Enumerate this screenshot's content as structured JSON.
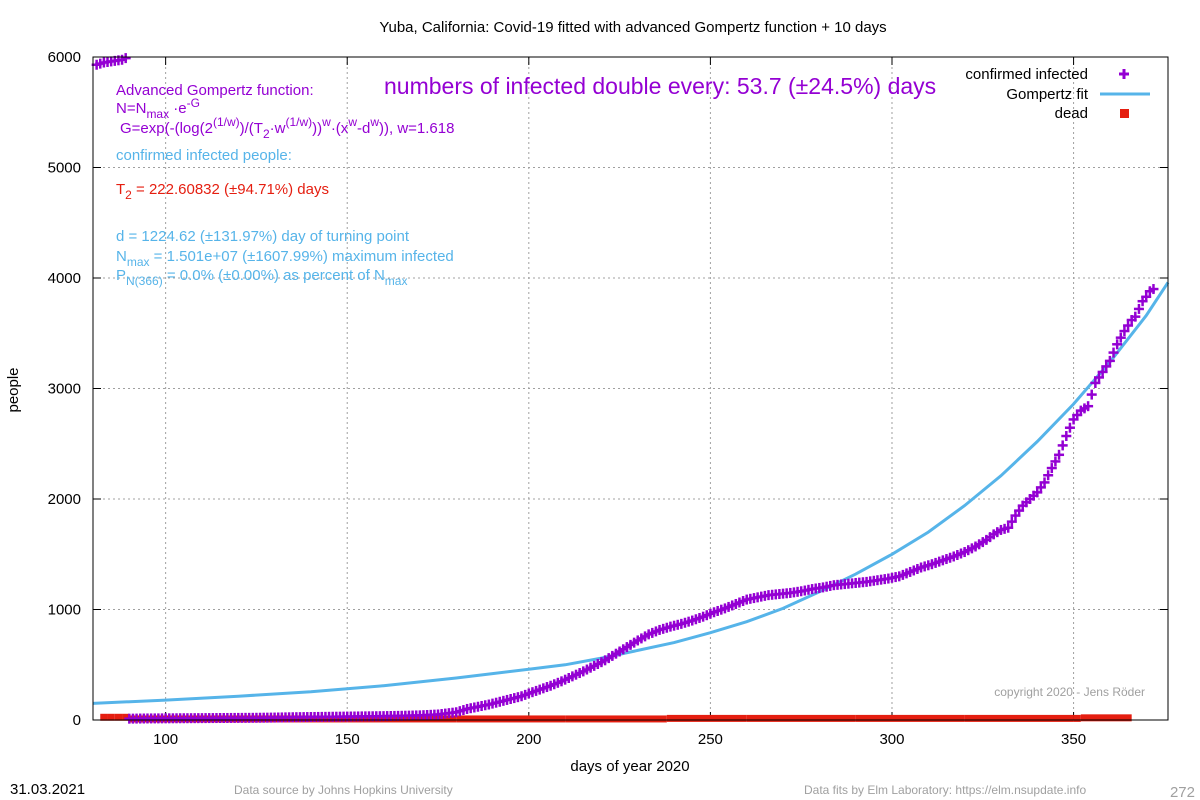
{
  "chart_data": {
    "type": "scatter",
    "title": "Yuba,  California: Covid-19 fitted with advanced Gompertz function + 10 days",
    "xlabel": "days of year 2020",
    "ylabel": "people",
    "xlim": [
      80,
      376
    ],
    "ylim": [
      0,
      6000
    ],
    "x_ticks": [
      100,
      150,
      200,
      250,
      300,
      350
    ],
    "y_ticks": [
      0,
      1000,
      2000,
      3000,
      4000,
      5000,
      6000
    ],
    "grid": true,
    "legend_position": "top-right",
    "series": [
      {
        "name": "confirmed infected",
        "marker": "plus",
        "color": "#9400d3",
        "points": [
          [
            81,
            5930
          ],
          [
            82,
            5940
          ],
          [
            83,
            5950
          ],
          [
            84,
            5955
          ],
          [
            85,
            5960
          ],
          [
            86,
            5965
          ],
          [
            87,
            5970
          ],
          [
            88,
            5975
          ],
          [
            89,
            5990
          ],
          [
            90,
            12
          ],
          [
            95,
            14
          ],
          [
            100,
            15
          ],
          [
            105,
            16
          ],
          [
            110,
            17
          ],
          [
            115,
            18
          ],
          [
            120,
            19
          ],
          [
            125,
            20
          ],
          [
            130,
            22
          ],
          [
            135,
            25
          ],
          [
            140,
            27
          ],
          [
            145,
            29
          ],
          [
            150,
            31
          ],
          [
            155,
            33
          ],
          [
            160,
            35
          ],
          [
            165,
            38
          ],
          [
            170,
            42
          ],
          [
            175,
            50
          ],
          [
            180,
            70
          ],
          [
            183,
            100
          ],
          [
            186,
            120
          ],
          [
            189,
            140
          ],
          [
            192,
            165
          ],
          [
            195,
            190
          ],
          [
            198,
            215
          ],
          [
            200,
            240
          ],
          [
            203,
            275
          ],
          [
            206,
            310
          ],
          [
            209,
            350
          ],
          [
            212,
            395
          ],
          [
            215,
            440
          ],
          [
            218,
            490
          ],
          [
            221,
            540
          ],
          [
            224,
            600
          ],
          [
            227,
            660
          ],
          [
            230,
            720
          ],
          [
            233,
            775
          ],
          [
            236,
            815
          ],
          [
            239,
            845
          ],
          [
            242,
            870
          ],
          [
            245,
            900
          ],
          [
            248,
            935
          ],
          [
            251,
            975
          ],
          [
            254,
            1010
          ],
          [
            257,
            1050
          ],
          [
            260,
            1090
          ],
          [
            263,
            1110
          ],
          [
            266,
            1130
          ],
          [
            269,
            1140
          ],
          [
            272,
            1150
          ],
          [
            275,
            1165
          ],
          [
            278,
            1185
          ],
          [
            281,
            1200
          ],
          [
            284,
            1220
          ],
          [
            287,
            1230
          ],
          [
            290,
            1240
          ],
          [
            293,
            1250
          ],
          [
            296,
            1265
          ],
          [
            299,
            1280
          ],
          [
            302,
            1300
          ],
          [
            305,
            1340
          ],
          [
            308,
            1380
          ],
          [
            311,
            1410
          ],
          [
            314,
            1445
          ],
          [
            317,
            1480
          ],
          [
            320,
            1520
          ],
          [
            323,
            1570
          ],
          [
            326,
            1630
          ],
          [
            328,
            1680
          ],
          [
            330,
            1720
          ],
          [
            332,
            1740
          ],
          [
            334,
            1850
          ],
          [
            336,
            1940
          ],
          [
            338,
            2000
          ],
          [
            340,
            2060
          ],
          [
            342,
            2150
          ],
          [
            344,
            2280
          ],
          [
            346,
            2400
          ],
          [
            348,
            2570
          ],
          [
            350,
            2720
          ],
          [
            352,
            2800
          ],
          [
            354,
            2840
          ],
          [
            356,
            3050
          ],
          [
            358,
            3150
          ],
          [
            360,
            3250
          ],
          [
            362,
            3400
          ],
          [
            364,
            3520
          ],
          [
            366,
            3620
          ],
          [
            367,
            3650
          ],
          [
            369,
            3790
          ],
          [
            370,
            3830
          ],
          [
            371,
            3880
          ],
          [
            372,
            3900
          ]
        ]
      },
      {
        "name": "Gompertz fit",
        "line": true,
        "color": "#56b4e9",
        "points": [
          [
            80,
            150
          ],
          [
            100,
            180
          ],
          [
            120,
            215
          ],
          [
            140,
            255
          ],
          [
            160,
            310
          ],
          [
            180,
            380
          ],
          [
            190,
            420
          ],
          [
            200,
            460
          ],
          [
            210,
            500
          ],
          [
            220,
            560
          ],
          [
            230,
            630
          ],
          [
            240,
            700
          ],
          [
            250,
            790
          ],
          [
            260,
            890
          ],
          [
            270,
            1010
          ],
          [
            280,
            1160
          ],
          [
            290,
            1320
          ],
          [
            300,
            1500
          ],
          [
            310,
            1700
          ],
          [
            320,
            1940
          ],
          [
            330,
            2210
          ],
          [
            340,
            2520
          ],
          [
            350,
            2860
          ],
          [
            360,
            3240
          ],
          [
            370,
            3660
          ],
          [
            376,
            3960
          ]
        ]
      },
      {
        "name": "dead",
        "marker": "square",
        "color": "#e51e10",
        "points": [
          [
            82,
            20
          ],
          [
            84,
            20
          ],
          [
            86,
            20
          ],
          [
            88,
            20
          ],
          [
            90,
            5
          ],
          [
            120,
            5
          ],
          [
            150,
            5
          ],
          [
            180,
            5
          ],
          [
            210,
            5
          ],
          [
            238,
            10
          ],
          [
            260,
            10
          ],
          [
            290,
            10
          ],
          [
            320,
            10
          ],
          [
            350,
            10
          ],
          [
            352,
            15
          ],
          [
            366,
            15
          ]
        ]
      }
    ],
    "annotations": {
      "doubling": "numbers of infected double every: 53.7 (±24.5%) days",
      "gompertz_head": "Advanced Gompertz function:",
      "eq1_main": "N=N",
      "eq1_sub": "max",
      "eq1_mid": " ·e",
      "eq1_sup": "-G",
      "eq2": "G=exp(-(log(2",
      "eq2_sup1": "(1/w)",
      "eq2_b": ")/(T",
      "eq2_sub": "2",
      "eq2_c": "·w",
      "eq2_sup2": "(1/w)",
      "eq2_d": "))",
      "eq2_sup3": "w",
      "eq2_e": "·(x",
      "eq2_sup4": "w",
      "eq2_f": "-d",
      "eq2_sup5": "w",
      "eq2_g": ")), w=1.618",
      "confirmed_label": "confirmed infected people:",
      "t2_main": "T",
      "t2_sub": "2",
      "t2_rest": " = 222.60832 (±94.71%) days",
      "d_line": "d = 1224.62 (±131.97%) day of turning point",
      "nmax_main": "N",
      "nmax_sub": "max",
      "nmax_rest": " = 1.501e+07 (±1607.99%) maximum infected",
      "p_main": "P",
      "p_sub": "N(366)",
      "p_rest": " = 0.0% (±0.00%) as percent of N",
      "p_sub2": "max",
      "copyright": "copyright 2020 - Jens Röder"
    }
  },
  "footer": {
    "date": "31.03.2021",
    "source": "Data source by Johns Hopkins University",
    "fits": "Data fits by Elm Laboratory: https://elm.nsupdate.info",
    "page_number": "272"
  },
  "colors": {
    "confirmed": "#9400d3",
    "fit": "#56b4e9",
    "dead": "#e51e10",
    "t2_text": "#e51e10",
    "muted": "#a0a0a0"
  }
}
